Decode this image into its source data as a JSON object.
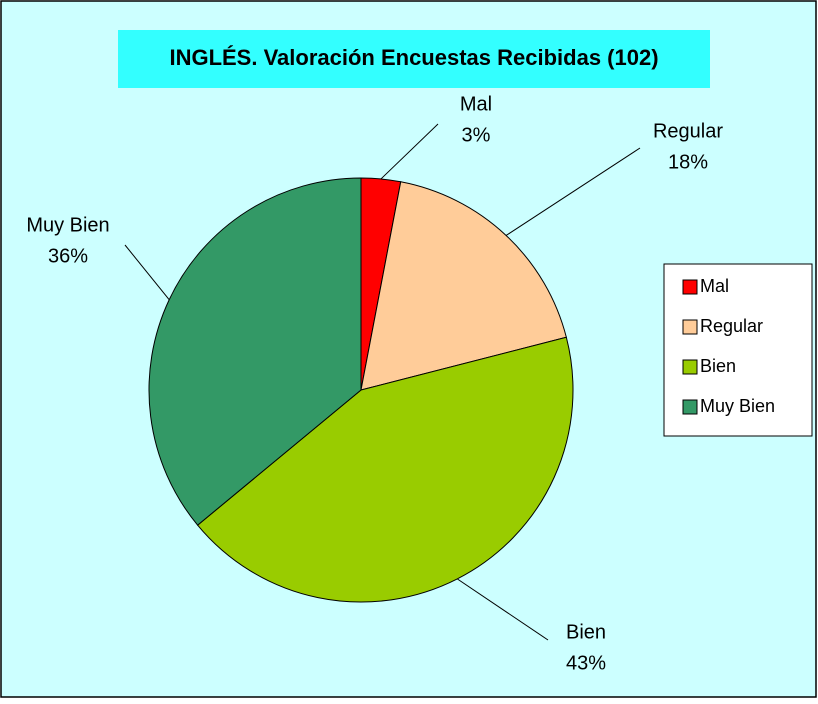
{
  "chart_data": {
    "type": "pie",
    "title": "INGLÉS. Valoración Encuestas Recibidas (102)",
    "categories": [
      "Mal",
      "Regular",
      "Bien",
      "Muy Bien"
    ],
    "values": [
      3,
      18,
      43,
      36
    ],
    "value_labels": [
      "3%",
      "18%",
      "43%",
      "36%"
    ],
    "colors": [
      "#ff0000",
      "#ffcc99",
      "#99cc00",
      "#339966"
    ],
    "legend": "right"
  }
}
